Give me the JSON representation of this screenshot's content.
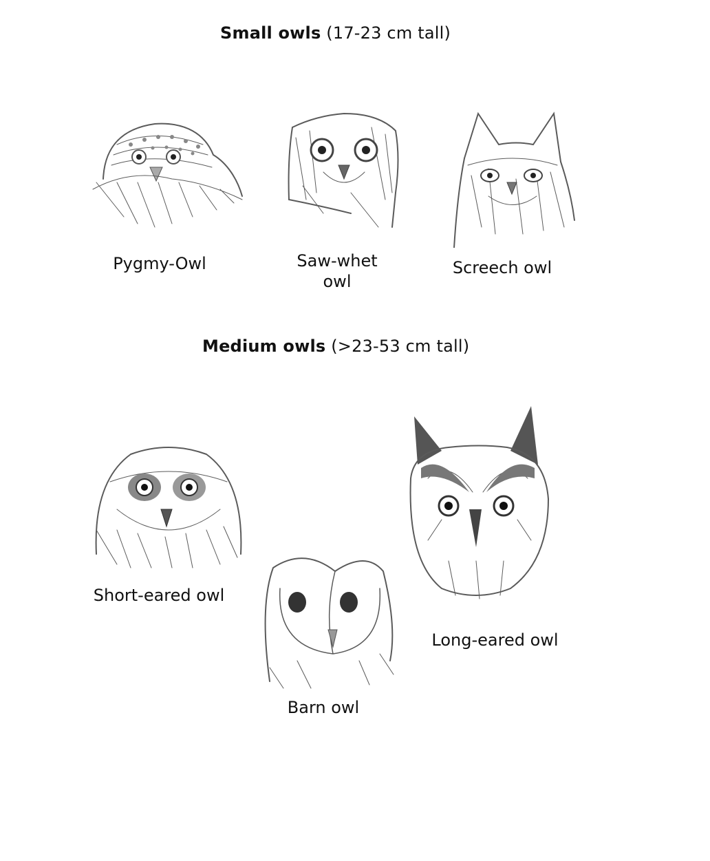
{
  "sections": [
    {
      "title_bold": "Small owls",
      "title_rest": " (17-23 cm tall)",
      "owls": [
        {
          "label": "Pygmy-Owl"
        },
        {
          "label_line1": "Saw-whet",
          "label_line2": "owl"
        },
        {
          "label": "Screech owl"
        }
      ]
    },
    {
      "title_bold": "Medium owls",
      "title_rest": " (>23-53 cm tall)",
      "owls": [
        {
          "label": "Short-eared owl"
        },
        {
          "label": "Barn owl"
        },
        {
          "label": "Long-eared owl"
        }
      ]
    }
  ]
}
